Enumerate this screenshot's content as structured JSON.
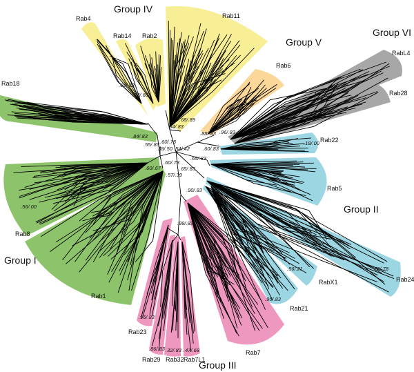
{
  "colors": {
    "group_i": "#8dc46b",
    "group_ii": "#9cd6e2",
    "group_iii": "#ee97bf",
    "group_iv": "#f7ee95",
    "group_v": "#fbd79a",
    "group_vi": "#a7a7a7"
  },
  "groups": {
    "group_i": "Group I",
    "group_ii": "Group II",
    "group_iii": "Group III",
    "group_iv": "Group IV",
    "group_v": "Group V",
    "group_vi": "Group VI"
  },
  "clades": {
    "rab1": "Rab1",
    "rab2": "Rab2",
    "rab4": "Rab4",
    "rab5": "Rab5",
    "rab6": "Rab6",
    "rab7": "Rab7",
    "rab7l1": "Rab7L1",
    "rab8": "Rab8",
    "rab11": "Rab11",
    "rab14": "Rab14",
    "rab18": "Rab18",
    "rab21": "Rab21",
    "rab22": "Rab22",
    "rab23": "Rab23",
    "rab24": "Rab24",
    "rab28": "Rab28",
    "rab29": "Rab29",
    "rab32": "Rab32",
    "rabl4": "RabL4",
    "rabx1": "RabX1"
  },
  "support": {
    "s1": ".69/.83",
    "s2": ".73/.60",
    "s3": ".64/.83",
    "s4": ".68/.89",
    "s5": ".88/.83",
    "s6": ".96/.83",
    "s7": ".84/.83",
    "s8": ".55/.83",
    "s9": ".60/.78",
    "s10": ".38/.50",
    "s11": ".54/.42",
    "s12": ".60/.83",
    "s13": ".65/.83",
    "s14": ".18/.00",
    "s15": ".60/.78",
    "s16": ".60/.67",
    "s17": ".57/.39",
    "s18": ".65/.83",
    "s19": ".90/.83",
    "s20": ".56/.00",
    "s21": ".99/.83",
    "s22": ".56/.21",
    "s23": ".79/.78",
    "s24": ".95/.83",
    "s25": ".96/.83",
    "s26": ".86/.83",
    "s27": ".32/.83",
    "s28": ".47/.68"
  }
}
